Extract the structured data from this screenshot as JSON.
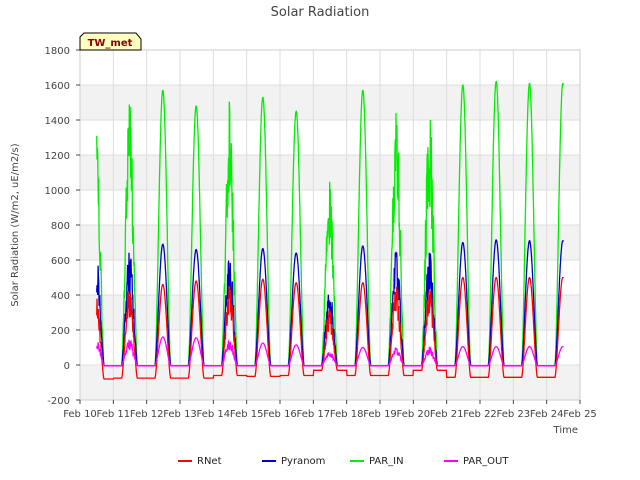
{
  "chart_data": {
    "type": "line",
    "title": "Solar Radiation",
    "xlabel": "Time",
    "ylabel": "Solar Radiation (W/m2, uE/m2/s)",
    "site_label": "TW_met",
    "ylim": [
      -200,
      1800
    ],
    "yticks": [
      -200,
      0,
      200,
      400,
      600,
      800,
      1000,
      1200,
      1400,
      1600,
      1800
    ],
    "xlim": [
      10,
      25
    ],
    "xticks": [
      {
        "v": 10,
        "label": "Feb 10"
      },
      {
        "v": 11,
        "label": "Feb 11"
      },
      {
        "v": 12,
        "label": "Feb 12"
      },
      {
        "v": 13,
        "label": "Feb 13"
      },
      {
        "v": 14,
        "label": "Feb 14"
      },
      {
        "v": 15,
        "label": "Feb 15"
      },
      {
        "v": 16,
        "label": "Feb 16"
      },
      {
        "v": 17,
        "label": "Feb 17"
      },
      {
        "v": 18,
        "label": "Feb 18"
      },
      {
        "v": 19,
        "label": "Feb 19"
      },
      {
        "v": 20,
        "label": "Feb 20"
      },
      {
        "v": 21,
        "label": "Feb 21"
      },
      {
        "v": 22,
        "label": "Feb 22"
      },
      {
        "v": 23,
        "label": "Feb 23"
      },
      {
        "v": 24,
        "label": "Feb 24"
      },
      {
        "v": 25,
        "label": "Feb 25"
      }
    ],
    "grid": true,
    "legend_position": "bottom-center",
    "x_start_day": 10.5,
    "days": [
      {
        "day": 10,
        "PAR_IN": 1520,
        "Pyranom": 660,
        "RNet": 430,
        "PAR_OUT": 150,
        "night_RNet": -80
      },
      {
        "day": 11,
        "PAR_IN": 1510,
        "Pyranom": 670,
        "RNet": 450,
        "PAR_OUT": 150,
        "night_RNet": -75
      },
      {
        "day": 12,
        "PAR_IN": 1570,
        "Pyranom": 690,
        "RNet": 460,
        "PAR_OUT": 160,
        "night_RNet": -75
      },
      {
        "day": 13,
        "PAR_IN": 1480,
        "Pyranom": 660,
        "RNet": 480,
        "PAR_OUT": 155,
        "night_RNet": -75
      },
      {
        "day": 14,
        "PAR_IN": 1530,
        "Pyranom": 660,
        "RNet": 480,
        "PAR_OUT": 150,
        "night_RNet": -60
      },
      {
        "day": 15,
        "PAR_IN": 1530,
        "Pyranom": 665,
        "RNet": 490,
        "PAR_OUT": 125,
        "night_RNet": -65
      },
      {
        "day": 16,
        "PAR_IN": 1450,
        "Pyranom": 640,
        "RNet": 470,
        "PAR_OUT": 115,
        "night_RNet": -60
      },
      {
        "day": 17,
        "PAR_IN": 1080,
        "Pyranom": 450,
        "RNet": 320,
        "PAR_OUT": 80,
        "night_RNet": -30
      },
      {
        "day": 18,
        "PAR_IN": 1570,
        "Pyranom": 680,
        "RNet": 470,
        "PAR_OUT": 100,
        "night_RNet": -60
      },
      {
        "day": 19,
        "PAR_IN": 1570,
        "Pyranom": 690,
        "RNet": 470,
        "PAR_OUT": 100,
        "night_RNet": -60
      },
      {
        "day": 20,
        "PAR_IN": 1500,
        "Pyranom": 660,
        "RNet": 460,
        "PAR_OUT": 100,
        "night_RNet": -30
      },
      {
        "day": 21,
        "PAR_IN": 1600,
        "Pyranom": 700,
        "RNet": 500,
        "PAR_OUT": 105,
        "night_RNet": -70
      },
      {
        "day": 22,
        "PAR_IN": 1620,
        "Pyranom": 715,
        "RNet": 500,
        "PAR_OUT": 105,
        "night_RNet": -70
      },
      {
        "day": 23,
        "PAR_IN": 1610,
        "Pyranom": 710,
        "RNet": 500,
        "PAR_OUT": 105,
        "night_RNet": -70
      }
    ],
    "x_end_day": 24.5,
    "series": [
      {
        "name": "RNet",
        "color": "#ff0000",
        "key": "RNet"
      },
      {
        "name": "Pyranom",
        "color": "#0000cc",
        "key": "Pyranom"
      },
      {
        "name": "PAR_IN",
        "color": "#00ee00",
        "key": "PAR_IN"
      },
      {
        "name": "PAR_OUT",
        "color": "#ff00ff",
        "key": "PAR_OUT"
      }
    ]
  }
}
